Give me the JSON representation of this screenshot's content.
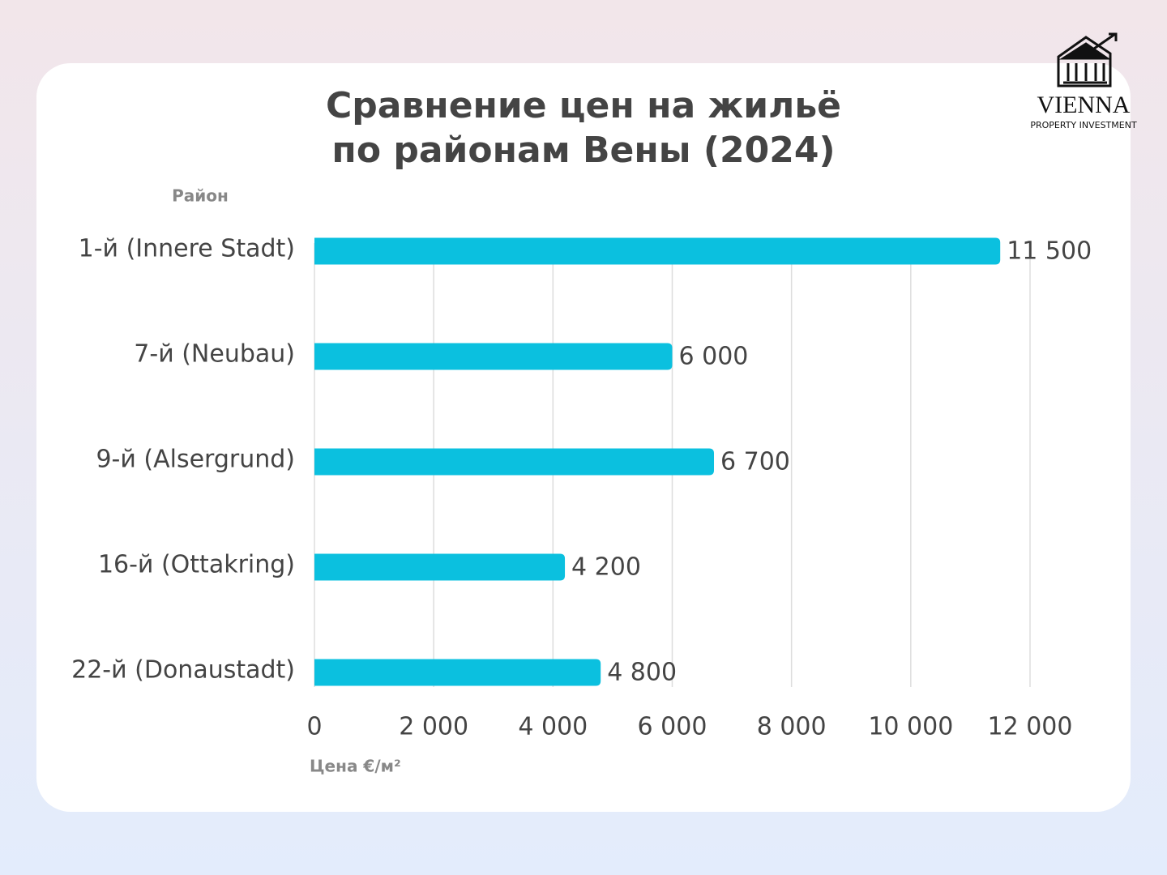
{
  "chart_data": {
    "type": "bar",
    "orientation": "horizontal",
    "title": [
      "Сравнение цен на жильё",
      "по районам Вены (2024)"
    ],
    "y_label": "Район",
    "x_label": "Цена €/м²",
    "categories": [
      "1-й (Innere Stadt)",
      "7-й (Neubau)",
      "9-й (Alsergrund)",
      "16-й (Ottakring)",
      "22-й (Donaustadt)"
    ],
    "values": [
      11500,
      6000,
      6700,
      4200,
      4800
    ],
    "value_labels": [
      "11 500",
      "6 000",
      "6 700",
      "4 200",
      "4 800"
    ],
    "color": "#0bc0df",
    "xlim": [
      0,
      12000
    ],
    "xticks": [
      0,
      {
        "value": 2000,
        "label": "2 000"
      },
      {
        "value": 4000,
        "label": "4 000"
      },
      {
        "value": 6000,
        "label": "6 000"
      },
      {
        "value": 8000,
        "label": "8 000"
      },
      {
        "value": 10000,
        "label": "10 000"
      },
      {
        "value": 12000,
        "label": "12 000"
      }
    ],
    "grid": true
  },
  "logo": {
    "name": "VIENNA",
    "tagline": "PROPERTY INVESTMENT"
  }
}
